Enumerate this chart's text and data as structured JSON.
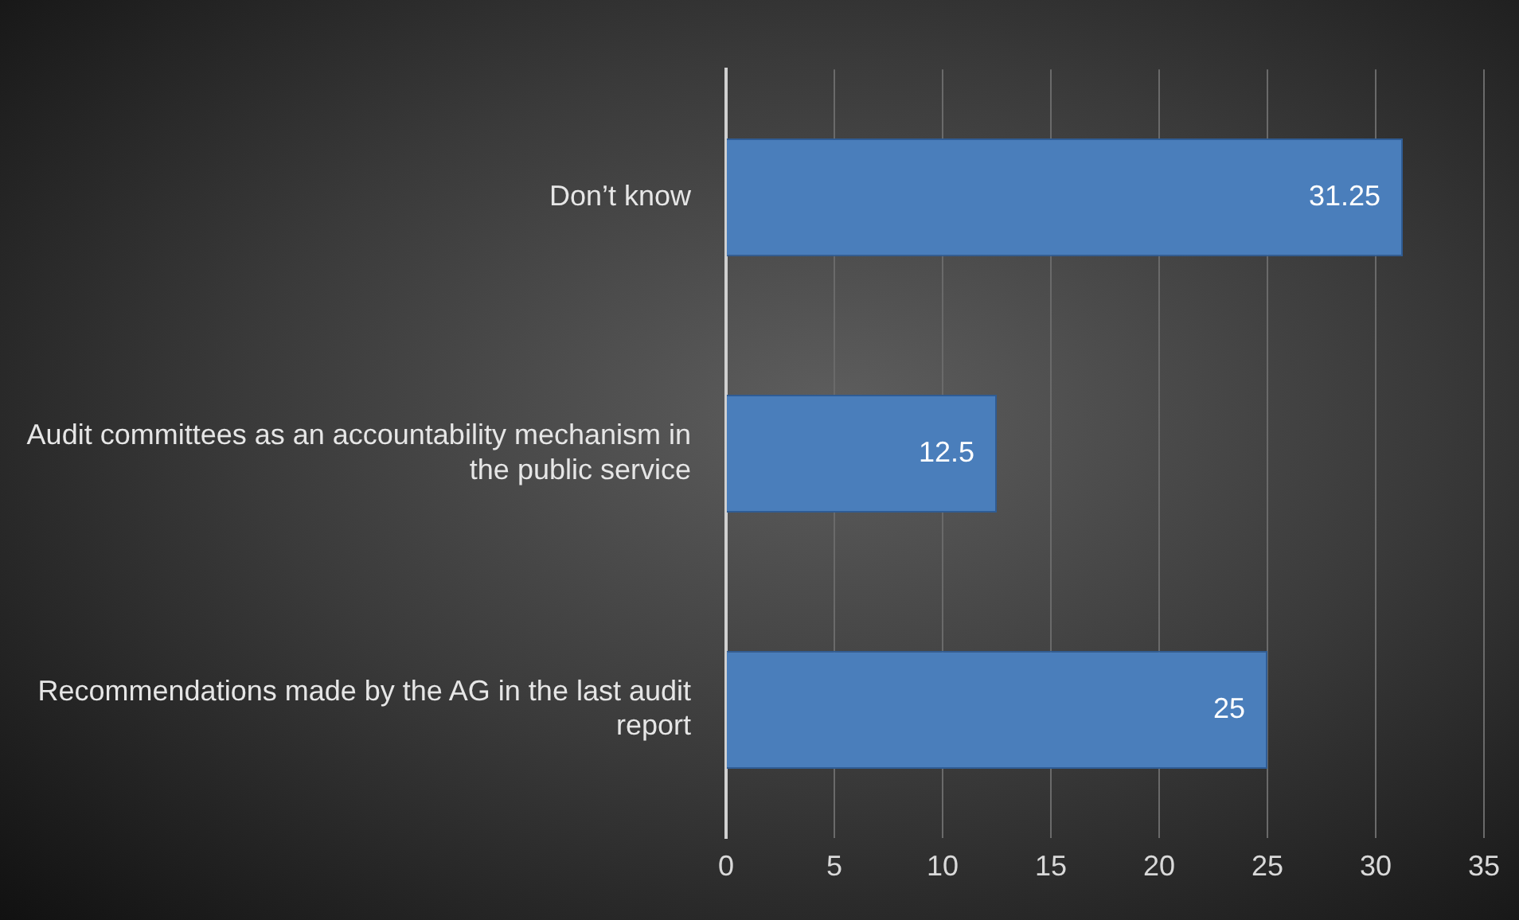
{
  "chart_data": {
    "type": "bar",
    "orientation": "horizontal",
    "categories": [
      "Don’t know",
      "Audit committees as an accountability mechanism in the public service",
      "Recommendations made by the AG in the last audit report"
    ],
    "values": [
      31.25,
      12.5,
      25
    ],
    "color": "#4a7ebb",
    "xlim": [
      0,
      35
    ],
    "xticks": [
      0,
      5,
      10,
      15,
      20,
      25,
      30,
      35
    ],
    "grid": "x",
    "legend": false,
    "data_labels": true
  }
}
